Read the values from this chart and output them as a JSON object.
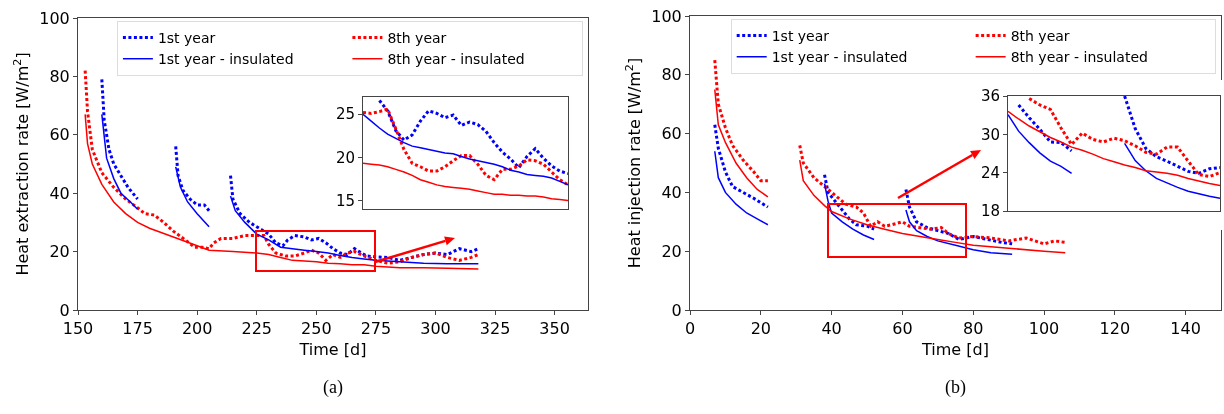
{
  "chart_data": [
    {
      "type": "line",
      "xlabel": "Time [d]",
      "ylabel": "Heat extraction rate [W/m$^{2}$]",
      "annotations": [
        "(a)"
      ],
      "xlim": [
        150,
        364
      ],
      "xticks": [
        150,
        175,
        200,
        225,
        250,
        275,
        300,
        325,
        350
      ],
      "ylim": [
        0,
        100
      ],
      "yticks": [
        0,
        20,
        40,
        60,
        80,
        100
      ],
      "grid": false,
      "legend": "top right",
      "marker": "none",
      "series": [
        {
          "name": "1st year",
          "color": "#0000ff",
          "line_style": "dotted",
          "x": [
            160,
            161,
            163,
            165,
            168,
            171,
            175,
            null,
            191,
            192,
            194,
            197,
            200,
            203,
            205,
            null,
            214,
            215,
            218,
            222,
            226,
            230,
            233,
            236,
            238,
            241,
            245,
            248,
            251,
            254,
            257,
            260,
            263,
            266,
            268,
            271,
            275,
            280,
            285,
            290,
            295,
            300,
            305,
            310,
            315,
            318
          ],
          "values": [
            79,
            65,
            55,
            50,
            46,
            42,
            38,
            null,
            56,
            46,
            41,
            38,
            36,
            36,
            34,
            null,
            46,
            38,
            33,
            30,
            28,
            26,
            23,
            22,
            24,
            25.5,
            25,
            24,
            24.5,
            23,
            21,
            19.5,
            19,
            21,
            20,
            18.5,
            18.2,
            18,
            17,
            18,
            19,
            19.5,
            19,
            21,
            20,
            21
          ]
        },
        {
          "name": "8th year",
          "color": "#ff0000",
          "line_style": "dotted",
          "x": [
            153,
            154,
            156,
            160,
            165,
            170,
            175,
            178,
            182,
            186,
            190,
            195,
            199,
            202,
            205,
            207,
            210,
            215,
            220,
            225,
            228,
            230,
            233,
            237,
            241,
            245,
            248,
            251,
            254,
            257,
            260,
            263,
            266,
            270,
            275,
            280,
            285,
            290,
            295,
            300,
            305,
            310,
            315,
            318
          ],
          "values": [
            82,
            68,
            55,
            47,
            42,
            38,
            35,
            33,
            32.5,
            30,
            27,
            24,
            21.5,
            21.5,
            21,
            23,
            24.5,
            24.5,
            25.5,
            25.5,
            25.5,
            22.5,
            19.5,
            18.5,
            18.5,
            19.5,
            20.5,
            19.5,
            17,
            19,
            18,
            19.5,
            20,
            18.5,
            17,
            16,
            16.5,
            18,
            19,
            19.5,
            18,
            17,
            18,
            19
          ]
        },
        {
          "name": "1st year - insulated",
          "color": "#0000ff",
          "line_style": "solid",
          "x": [
            160,
            162,
            165,
            168,
            172,
            175,
            null,
            191,
            193,
            196,
            200,
            205,
            null,
            214,
            216,
            220,
            225,
            230,
            235,
            240,
            245,
            250,
            255,
            260,
            265,
            270,
            275,
            285,
            295,
            305,
            318
          ],
          "values": [
            67,
            52,
            45,
            40,
            37,
            34.5,
            null,
            49,
            42,
            37,
            33,
            28.5,
            null,
            39,
            34,
            30,
            26,
            24,
            21.5,
            21,
            20.5,
            20,
            19.5,
            18.7,
            18,
            17.5,
            17,
            16.5,
            16,
            15.8,
            15.8
          ]
        },
        {
          "name": "8th year - insulated",
          "color": "#ff0000",
          "line_style": "solid",
          "x": [
            153,
            154,
            156,
            160,
            165,
            170,
            175,
            180,
            190,
            200,
            205,
            215,
            225,
            230,
            235,
            240,
            245,
            250,
            255,
            260,
            265,
            270,
            275,
            285,
            295,
            305,
            318
          ],
          "values": [
            67,
            57,
            50,
            43,
            37,
            33,
            30,
            28,
            25,
            22,
            20.5,
            20,
            19.5,
            19,
            18,
            17,
            16.8,
            16.5,
            16,
            15.8,
            15.5,
            15.5,
            15,
            14.5,
            14.5,
            14.3,
            14
          ]
        }
      ]
    },
    {
      "type": "line",
      "categories": [
        null,
        null,
        null,
        null,
        null,
        null,
        null,
        null,
        null,
        null,
        null,
        null,
        null,
        null,
        null,
        null,
        null,
        null,
        null,
        null,
        null,
        null,
        null,
        null,
        null,
        null
      ],
      "ylim": [
        14,
        27
      ],
      "yticks": [
        15,
        20,
        25
      ],
      "tick_labels": "y",
      "grid": false,
      "legend": false,
      "marker": "none",
      "series": [
        {
          "color": "#0000ff",
          "line_style": "dotted",
          "values": [
            null,
            null,
            26.6,
            25.4,
            23.1,
            22.0,
            22.6,
            24.2,
            25.4,
            25.1,
            24.6,
            24.9,
            23.7,
            24.1,
            23.8,
            23.0,
            21.7,
            20.6,
            19.8,
            18.8,
            20.1,
            21.0,
            19.9,
            19.0,
            18.4,
            18.1
          ]
        },
        {
          "color": "#ff0000",
          "line_style": "dotted",
          "values": [
            25.2,
            25.1,
            25.3,
            25.6,
            23.3,
            20.9,
            19.3,
            18.9,
            18.4,
            18.4,
            18.9,
            19.6,
            20.2,
            20.2,
            19.2,
            17.9,
            17.4,
            18.6,
            18.6,
            19.0,
            19.7,
            19.6,
            19.2,
            18.3,
            17.4,
            16.8
          ]
        },
        {
          "color": "#0000ff",
          "line_style": "solid",
          "values": [
            25.0,
            24.2,
            23.4,
            22.7,
            22.2,
            21.7,
            21.3,
            21.1,
            20.9,
            20.7,
            20.5,
            20.4,
            20.1,
            19.8,
            19.6,
            19.4,
            19.2,
            18.9,
            18.5,
            18.3,
            18.0,
            17.9,
            17.8,
            17.6,
            17.2,
            16.8
          ]
        },
        {
          "color": "#ff0000",
          "line_style": "solid",
          "values": [
            19.3,
            19.2,
            19.1,
            18.9,
            18.6,
            18.3,
            17.9,
            17.4,
            17.1,
            16.8,
            16.6,
            16.5,
            16.4,
            16.3,
            16.1,
            15.9,
            15.7,
            15.7,
            15.6,
            15.6,
            15.5,
            15.5,
            15.4,
            15.2,
            15.1,
            15.0
          ]
        }
      ]
    },
    {
      "type": "line",
      "xlabel": "Time [d]",
      "ylabel": "Heat injection rate [W/m$^{2}$]",
      "annotations": [
        "(b)"
      ],
      "xlim": [
        0,
        150
      ],
      "xticks": [
        0,
        20,
        40,
        60,
        80,
        100,
        120,
        140
      ],
      "ylim": [
        0,
        100
      ],
      "yticks": [
        0,
        20,
        40,
        60,
        80,
        100
      ],
      "grid": false,
      "legend": "top right",
      "marker": "none",
      "series": [
        {
          "name": "1st year",
          "color": "#0000ff",
          "line_style": "dotted",
          "x": [
            7,
            8,
            10,
            12,
            15,
            18,
            22,
            null,
            38,
            39,
            41,
            43,
            45,
            47,
            50,
            52,
            null,
            61,
            62,
            64,
            67,
            70,
            73,
            76,
            80,
            84,
            88,
            91
          ],
          "values": [
            63,
            55,
            47,
            42,
            40,
            38,
            35,
            null,
            46,
            40,
            37,
            34,
            31,
            29,
            28.5,
            27.5,
            null,
            41,
            35,
            30,
            28,
            27,
            26,
            24,
            25,
            24,
            23,
            22.5
          ]
        },
        {
          "name": "8th year",
          "color": "#ff0000",
          "line_style": "dotted",
          "x": [
            7,
            8,
            10,
            12,
            15,
            18,
            20,
            22,
            null,
            31,
            32,
            35,
            38,
            41,
            44,
            47,
            49,
            51,
            53,
            55,
            57,
            60,
            62,
            65,
            68,
            71,
            73,
            76,
            80,
            85,
            90,
            95,
            100,
            103,
            106
          ],
          "values": [
            85,
            70,
            62,
            56,
            51,
            47,
            44,
            44,
            null,
            56,
            50,
            45,
            42,
            39,
            36,
            35,
            33,
            28.5,
            30,
            28.5,
            29,
            30,
            28.5,
            28,
            27.5,
            28,
            26,
            24.5,
            25,
            24.5,
            23.5,
            24.5,
            22.5,
            23.5,
            23
          ]
        },
        {
          "name": "1st year - insulated",
          "color": "#0000ff",
          "line_style": "solid",
          "x": [
            7,
            8,
            10,
            13,
            16,
            19,
            22,
            null,
            38,
            39,
            40,
            43,
            46,
            49,
            52,
            null,
            61,
            62,
            64,
            67,
            70,
            75,
            80,
            85,
            91
          ],
          "values": [
            54,
            45,
            40,
            36,
            33,
            31,
            29,
            null,
            43,
            37,
            33,
            30,
            27.5,
            25.5,
            24,
            null,
            34,
            30,
            27,
            25,
            23.5,
            22,
            20.5,
            19.5,
            19
          ]
        },
        {
          "name": "8th year - insulated",
          "color": "#ff0000",
          "line_style": "solid",
          "x": [
            7,
            8,
            10,
            13,
            16,
            19,
            22,
            null,
            31,
            32,
            35,
            38,
            40,
            45,
            50,
            55,
            60,
            65,
            70,
            75,
            80,
            90,
            100,
            106
          ],
          "values": [
            75,
            63,
            57,
            50,
            45,
            41,
            38.5,
            null,
            51,
            44,
            39,
            35.5,
            33.5,
            31,
            29,
            27.5,
            26,
            25,
            24,
            23,
            22,
            21,
            20,
            19.5
          ]
        }
      ]
    },
    {
      "type": "line",
      "categories": [
        null,
        null,
        null,
        null,
        null,
        null,
        null,
        null,
        null,
        null,
        null,
        null,
        null,
        null,
        null,
        null,
        null,
        null,
        null,
        null,
        null
      ],
      "ylim": [
        18,
        36
      ],
      "yticks": [
        18,
        24,
        30,
        36
      ],
      "tick_labels": "y",
      "grid": false,
      "legend": false,
      "marker": "none",
      "series": [
        {
          "color": "#0000ff",
          "line_style": "dotted",
          "values": [
            null,
            34.6,
            32.6,
            30.8,
            28.8,
            28.7,
            27.4,
            null,
            null,
            null,
            null,
            36,
            30.9,
            27.8,
            26.5,
            25.8,
            25.0,
            24.2,
            23.9,
            24.6,
            24.8
          ]
        },
        {
          "color": "#ff0000",
          "line_style": "dotted",
          "values": [
            null,
            null,
            35.6,
            34.6,
            33.9,
            31.0,
            28.4,
            30.2,
            29.2,
            28.8,
            29.4,
            29.0,
            28.2,
            27.2,
            26.9,
            28.0,
            28.0,
            25.8,
            23.7,
            23.4,
            24.0
          ]
        },
        {
          "color": "#0000ff",
          "line_style": "solid",
          "values": [
            33.1,
            30.5,
            28.7,
            27.1,
            25.8,
            25.0,
            23.9,
            null,
            null,
            null,
            null,
            28.6,
            25.9,
            24.3,
            23.1,
            22.4,
            21.7,
            21.1,
            20.7,
            20.3,
            20.0
          ]
        },
        {
          "color": "#ff0000",
          "line_style": "solid",
          "values": [
            33.6,
            32.4,
            31.3,
            30.4,
            29.5,
            28.8,
            28.0,
            27.5,
            26.9,
            26.2,
            25.7,
            25.2,
            24.8,
            24.3,
            24.1,
            23.9,
            23.6,
            23.1,
            22.7,
            22.3,
            22.0
          ]
        }
      ]
    }
  ]
}
